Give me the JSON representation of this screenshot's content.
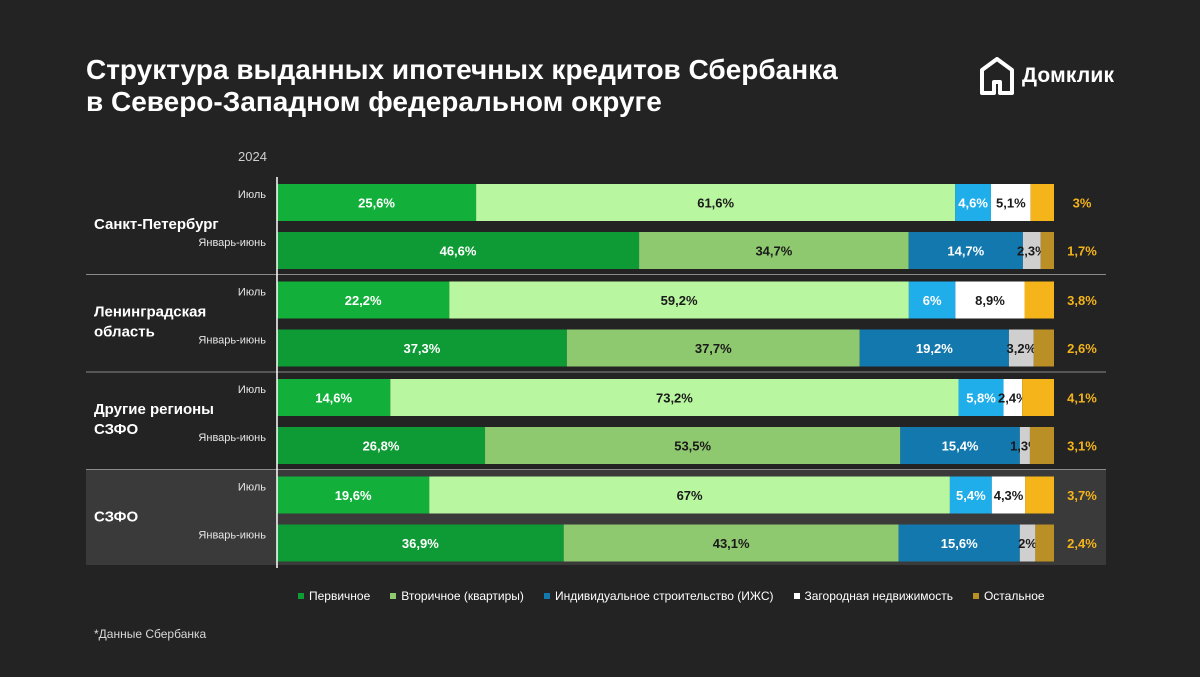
{
  "title_lines": [
    "Структура выданных ипотечных кредитов Сбербанка",
    "в Северо-Западном федеральном округе"
  ],
  "logo": {
    "text": "Домклик"
  },
  "footnote": "*Данные Сбербанка",
  "chart_data": {
    "type": "bar",
    "orientation": "horizontal",
    "stacked": true,
    "normalized": true,
    "year_label": "2024",
    "groups": [
      {
        "name": "Санкт-Петербург",
        "highlight": false,
        "rows": [
          {
            "period": "Июль",
            "values": [
              25.6,
              61.6,
              4.6,
              5.1,
              3.0
            ],
            "labels": [
              "25,6%",
              "61,6%",
              "4,6%",
              "5,1%",
              "3%"
            ]
          },
          {
            "period": "Январь-июнь",
            "values": [
              46.6,
              34.7,
              14.7,
              2.3,
              1.7
            ],
            "labels": [
              "46,6%",
              "34,7%",
              "14,7%",
              "2,3%",
              "1,7%"
            ]
          }
        ]
      },
      {
        "name": "Ленинградская область",
        "highlight": false,
        "rows": [
          {
            "period": "Июль",
            "values": [
              22.2,
              59.2,
              6.0,
              8.9,
              3.8
            ],
            "labels": [
              "22,2%",
              "59,2%",
              "6%",
              "8,9%",
              "3,8%"
            ]
          },
          {
            "period": "Январь-июнь",
            "values": [
              37.3,
              37.7,
              19.2,
              3.2,
              2.6
            ],
            "labels": [
              "37,3%",
              "37,7%",
              "19,2%",
              "3,2%",
              "2,6%"
            ]
          }
        ]
      },
      {
        "name": "Другие регионы СЗФО",
        "highlight": false,
        "rows": [
          {
            "period": "Июль",
            "values": [
              14.6,
              73.2,
              5.8,
              2.4,
              4.1
            ],
            "labels": [
              "14,6%",
              "73,2%",
              "5,8%",
              "2,4%",
              "4,1%"
            ]
          },
          {
            "period": "Январь-июнь",
            "values": [
              26.8,
              53.5,
              15.4,
              1.3,
              3.1
            ],
            "labels": [
              "26,8%",
              "53,5%",
              "15,4%",
              "1,3%",
              "3,1%"
            ]
          }
        ]
      },
      {
        "name": "СЗФО",
        "highlight": true,
        "rows": [
          {
            "period": "Июль",
            "values": [
              19.6,
              67.0,
              5.4,
              4.3,
              3.7
            ],
            "labels": [
              "19,6%",
              "67%",
              "5,4%",
              "4,3%",
              "3,7%"
            ]
          },
          {
            "period": "Январь-июнь",
            "values": [
              36.9,
              43.1,
              15.6,
              2.0,
              2.4
            ],
            "labels": [
              "36,9%",
              "43,1%",
              "15,6%",
              "2%",
              "2,4%"
            ]
          }
        ]
      }
    ],
    "series": [
      {
        "name": "Первичное",
        "color_july": "#12b03a",
        "color_halfyear": "#0e9a34",
        "label_color": "#ffffff"
      },
      {
        "name": "Вторичное (квартиры)",
        "color_july": "#b8f7a0",
        "color_halfyear": "#8ec86f",
        "label_color": "#1a1a1a"
      },
      {
        "name": "Индивидуальное строительство (ИЖС)",
        "color_july": "#20aeea",
        "color_halfyear": "#1278ae",
        "label_color": "#ffffff"
      },
      {
        "name": "Загородная недвижимость",
        "color_july": "#ffffff",
        "color_halfyear": "#cfcfcf",
        "label_color": "#1a1a1a"
      },
      {
        "name": "Остальное",
        "color_july": "#f4b41a",
        "color_halfyear": "#b98f26",
        "label_color": "#f4b41a"
      }
    ],
    "legend_position": "bottom",
    "colors": {
      "background": "#232323",
      "highlight_background": "#3a3a3a",
      "external_label": "#f4b41a"
    }
  }
}
